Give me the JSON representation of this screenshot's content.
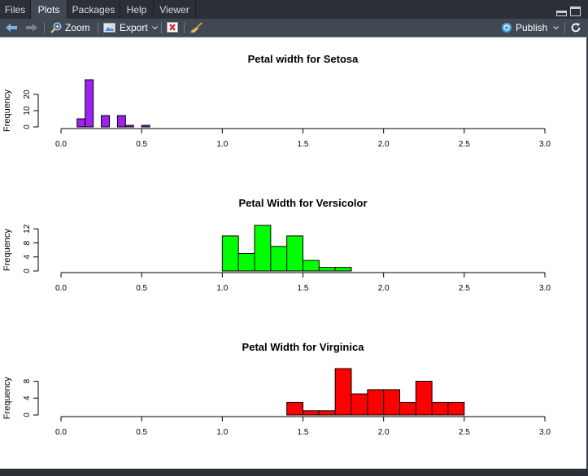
{
  "tabs": [
    {
      "label": "Files",
      "active": false
    },
    {
      "label": "Plots",
      "active": true
    },
    {
      "label": "Packages",
      "active": false
    },
    {
      "label": "Help",
      "active": false
    },
    {
      "label": "Viewer",
      "active": false
    }
  ],
  "toolbar": {
    "zoom_label": "Zoom",
    "export_label": "Export",
    "publish_label": "Publish"
  },
  "colors": {
    "setosa": "#a020f0",
    "versicolor": "#00ff00",
    "virginica": "#ff0000"
  },
  "chart_data": [
    {
      "type": "bar",
      "title": "Petal width for Setosa",
      "ylabel": "Frequency",
      "xlabel": "",
      "xlim": [
        0,
        3
      ],
      "ylim": [
        0,
        29
      ],
      "x_ticks": [
        "0.0",
        "0.5",
        "1.0",
        "1.5",
        "2.0",
        "2.5",
        "3.0"
      ],
      "y_ticks": [
        "0",
        "10",
        "20"
      ],
      "y_tick_values": [
        0,
        10,
        20
      ],
      "bins": [
        [
          0.1,
          0.15
        ],
        [
          0.15,
          0.2
        ],
        [
          0.2,
          0.25
        ],
        [
          0.25,
          0.3
        ],
        [
          0.3,
          0.35
        ],
        [
          0.35,
          0.4
        ],
        [
          0.4,
          0.45
        ],
        [
          0.45,
          0.5
        ],
        [
          0.5,
          0.55
        ],
        [
          0.55,
          0.6
        ]
      ],
      "values": [
        5,
        29,
        0,
        7,
        0,
        7,
        1,
        0,
        1,
        0
      ],
      "color": "#a020f0"
    },
    {
      "type": "bar",
      "title": "Petal Width for Versicolor",
      "ylabel": "Frequency",
      "xlabel": "",
      "xlim": [
        0,
        3
      ],
      "ylim": [
        0,
        13
      ],
      "x_ticks": [
        "0.0",
        "0.5",
        "1.0",
        "1.5",
        "2.0",
        "2.5",
        "3.0"
      ],
      "y_ticks": [
        "0",
        "4",
        "8",
        "12"
      ],
      "y_tick_values": [
        0,
        4,
        8,
        12
      ],
      "bins": [
        [
          1.0,
          1.1
        ],
        [
          1.1,
          1.2
        ],
        [
          1.2,
          1.3
        ],
        [
          1.3,
          1.4
        ],
        [
          1.4,
          1.5
        ],
        [
          1.5,
          1.6
        ],
        [
          1.6,
          1.7
        ],
        [
          1.7,
          1.8
        ]
      ],
      "values": [
        10,
        5,
        13,
        7,
        10,
        3,
        1,
        1
      ],
      "color": "#00ff00"
    },
    {
      "type": "bar",
      "title": "Petal Width for Virginica",
      "ylabel": "Frequency",
      "xlabel": "",
      "xlim": [
        0,
        3
      ],
      "ylim": [
        0,
        11
      ],
      "x_ticks": [
        "0.0",
        "0.5",
        "1.0",
        "1.5",
        "2.0",
        "2.5",
        "3.0"
      ],
      "y_ticks": [
        "0",
        "4",
        "8"
      ],
      "y_tick_values": [
        0,
        4,
        8
      ],
      "bins": [
        [
          1.4,
          1.5
        ],
        [
          1.5,
          1.6
        ],
        [
          1.6,
          1.7
        ],
        [
          1.7,
          1.8
        ],
        [
          1.8,
          1.9
        ],
        [
          1.9,
          2.0
        ],
        [
          2.0,
          2.1
        ],
        [
          2.1,
          2.2
        ],
        [
          2.2,
          2.3
        ],
        [
          2.3,
          2.4
        ],
        [
          2.4,
          2.5
        ]
      ],
      "values": [
        3,
        1,
        1,
        11,
        5,
        6,
        6,
        3,
        8,
        3,
        3
      ],
      "color": "#ff0000"
    }
  ]
}
